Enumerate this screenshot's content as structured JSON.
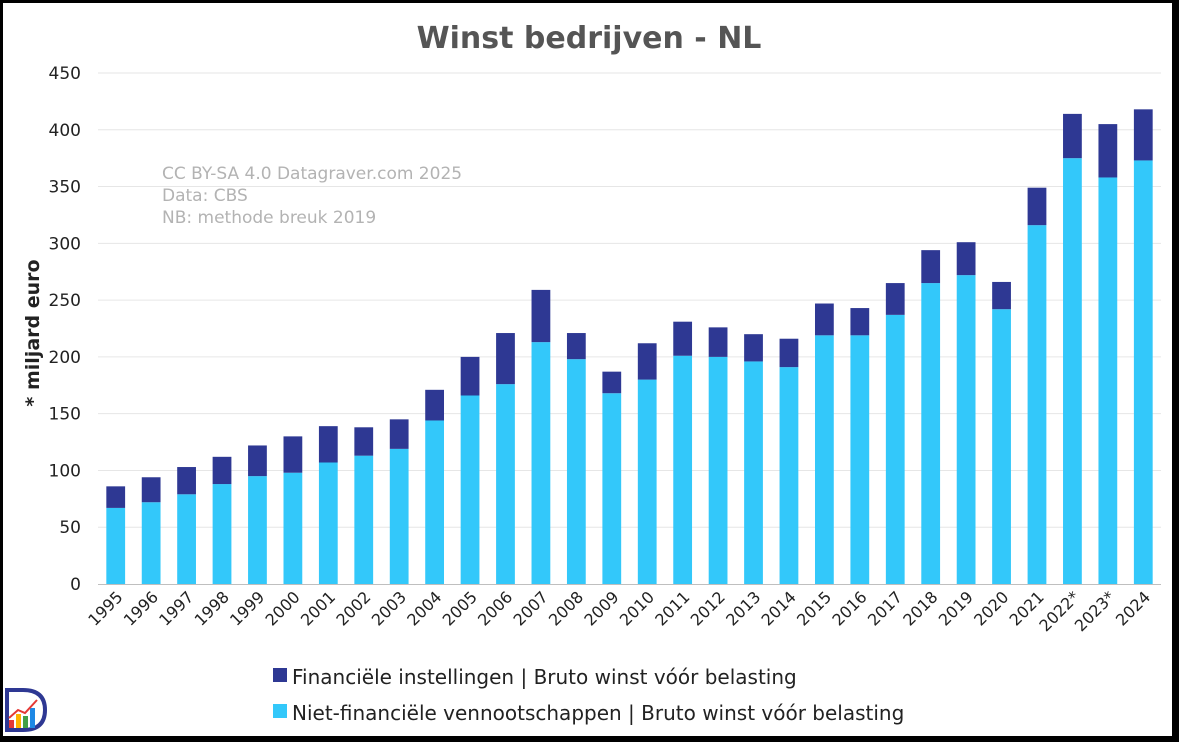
{
  "chart_data": {
    "type": "bar",
    "stacked": true,
    "title": "Winst bedrijven - NL",
    "xlabel": "",
    "ylabel": "* miljard euro",
    "ylim": [
      0,
      450
    ],
    "yticks": [
      0,
      50,
      100,
      150,
      200,
      250,
      300,
      350,
      400,
      450
    ],
    "grid": true,
    "legend_position": "bottom",
    "categories": [
      "1995",
      "1996",
      "1997",
      "1998",
      "1999",
      "2000",
      "2001",
      "2002",
      "2003",
      "2004",
      "2005",
      "2006",
      "2007",
      "2008",
      "2009",
      "2010",
      "2011",
      "2012",
      "2013",
      "2014",
      "2015",
      "2016",
      "2017",
      "2018",
      "2019",
      "2020",
      "2021",
      "2022*",
      "2023*",
      "2024"
    ],
    "series": [
      {
        "name": "Niet-financiële vennootschappen | Bruto winst vóór belasting",
        "color": "#33c8fa",
        "values": [
          67,
          72,
          79,
          88,
          95,
          98,
          107,
          113,
          119,
          144,
          166,
          176,
          213,
          198,
          168,
          180,
          201,
          200,
          196,
          191,
          219,
          219,
          237,
          265,
          272,
          242,
          316,
          375,
          358,
          373
        ]
      },
      {
        "name": "Financiële instellingen | Bruto winst vóór belasting",
        "color": "#2e3893",
        "values": [
          19,
          22,
          24,
          24,
          27,
          32,
          32,
          25,
          26,
          27,
          34,
          45,
          46,
          23,
          19,
          32,
          30,
          26,
          24,
          25,
          28,
          24,
          28,
          29,
          29,
          24,
          33,
          39,
          47,
          45
        ]
      }
    ],
    "annotations": [
      "CC BY-SA 4.0 Datagraver.com 2025",
      "Data: CBS",
      "NB: methode breuk 2019"
    ]
  },
  "logo": {
    "name": "datagraver-logo"
  }
}
